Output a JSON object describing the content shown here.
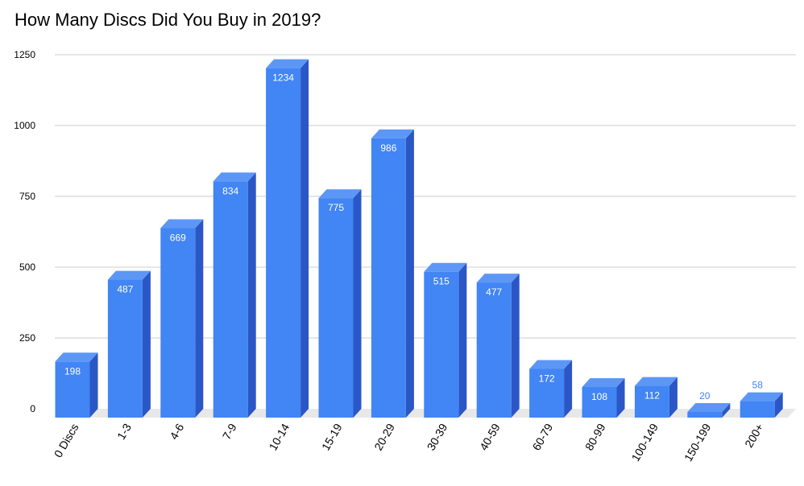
{
  "chart_data": {
    "type": "bar",
    "title": "How Many Discs Did You Buy in 2019?",
    "xlabel": "",
    "ylabel": "",
    "ylim": [
      0,
      1250
    ],
    "yticks": [
      0,
      250,
      500,
      750,
      1000,
      1250
    ],
    "grid": true,
    "legend": "none",
    "style": "3d",
    "categories": [
      "0 Discs",
      "1-3",
      "4-6",
      "7-9",
      "10-14",
      "15-19",
      "20-29",
      "30-39",
      "40-59",
      "60-79",
      "80-99",
      "100-149",
      "150-199",
      "200+"
    ],
    "values": [
      198,
      487,
      669,
      834,
      1234,
      775,
      986,
      515,
      477,
      172,
      108,
      112,
      20,
      58
    ]
  },
  "colors": {
    "bar_front": "#4285f4",
    "bar_top": "#5d97f6",
    "bar_side": "#2a56c6",
    "label_inside": "#ffffff",
    "label_outside": "#4285f4",
    "grid": "#cccccc",
    "floor": "#e8e8e8",
    "text": "#000000"
  }
}
